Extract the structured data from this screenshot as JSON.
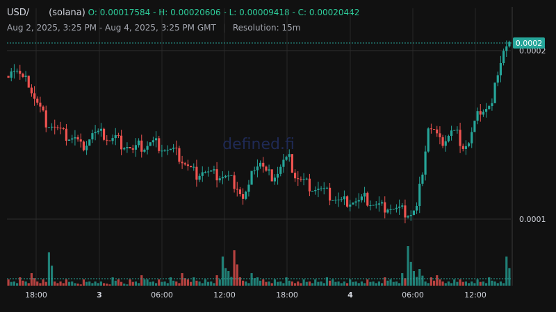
{
  "header": {
    "symbol": "USD/",
    "network": "(solana)",
    "ohlc": "O: 0.00017584 - H: 0.00020606 - L: 0.00009418 - C: 0.00020442",
    "range": "Aug 2, 2025, 3:25 PM - Aug 4, 2025, 3:25 PM GMT",
    "separator": "|",
    "resolution": "Resolution: 15m"
  },
  "watermark": "defined.fi",
  "colors": {
    "up": "#26a69a",
    "down": "#ef5350",
    "bg": "#111111",
    "grid": "#262626",
    "price_tag": "#26a69a"
  },
  "chart_data": {
    "type": "candlestick",
    "y_axis": {
      "scale": "linear",
      "tick_labels": [
        "0.0002",
        "0.0001"
      ],
      "ticks": [
        0.0002,
        0.0001
      ]
    },
    "x_axis": {
      "tick_labels": [
        "18:00",
        "3",
        "06:00",
        "12:00",
        "18:00",
        "4",
        "06:00",
        "12:00"
      ]
    },
    "last_price_label": "0.0002",
    "last_price": 0.00020442,
    "grid": true,
    "close_path": [
      0.000185,
      0.00019,
      0.000188,
      0.000182,
      0.000181,
      0.000172,
      0.000165,
      0.000158,
      0.000156,
      0.000153,
      0.00015,
      0.000149,
      0.000148,
      0.000143,
      0.000146,
      0.000151,
      0.00015,
      0.00015,
      0.000147,
      0.000148,
      0.000145,
      0.000144,
      0.00014,
      0.000143,
      0.000143,
      0.000145,
      0.000145,
      0.000143,
      0.000141,
      0.00014,
      0.000137,
      0.000133,
      0.000129,
      0.000127,
      0.000129,
      0.000127,
      0.000126,
      0.000126,
      0.000125,
      0.000123,
      0.00012,
      0.000112,
      0.000118,
      0.000132,
      0.000134,
      0.000127,
      0.000126,
      0.000128,
      0.000134,
      0.000135,
      0.000126,
      0.000123,
      0.000121,
      0.000119,
      0.000118,
      0.000116,
      0.000114,
      0.000112,
      0.00011,
      0.000111,
      0.000111,
      0.00011,
      0.000112,
      0.00011,
      0.000108,
      0.000107,
      0.000108,
      0.000106,
      0.000105,
      0.000104,
      0.000103,
      0.000106,
      0.00013,
      0.000155,
      0.000152,
      0.000145,
      0.000148,
      0.000152,
      0.00015,
      0.000144,
      0.000145,
      0.000156,
      0.000165,
      0.000166,
      0.000167,
      0.000189,
      0.000201,
      0.000204
    ],
    "volume_path": [
      3,
      2,
      4,
      2,
      6,
      2,
      3,
      16,
      2,
      2,
      3,
      2,
      1,
      3,
      2,
      2,
      2,
      1,
      4,
      3,
      1,
      3,
      2,
      5,
      3,
      2,
      3,
      2,
      4,
      2,
      6,
      3,
      4,
      2,
      3,
      2,
      5,
      14,
      7,
      17,
      4,
      2,
      6,
      4,
      3,
      2,
      3,
      2,
      4,
      2,
      2,
      3,
      2,
      3,
      2,
      4,
      3,
      2,
      2,
      3,
      2,
      2,
      3,
      2,
      2,
      4,
      3,
      2,
      6,
      19,
      7,
      8,
      2,
      4,
      5,
      2,
      2,
      3,
      3,
      2,
      2,
      3,
      2,
      4,
      2,
      2,
      14,
      3
    ]
  }
}
